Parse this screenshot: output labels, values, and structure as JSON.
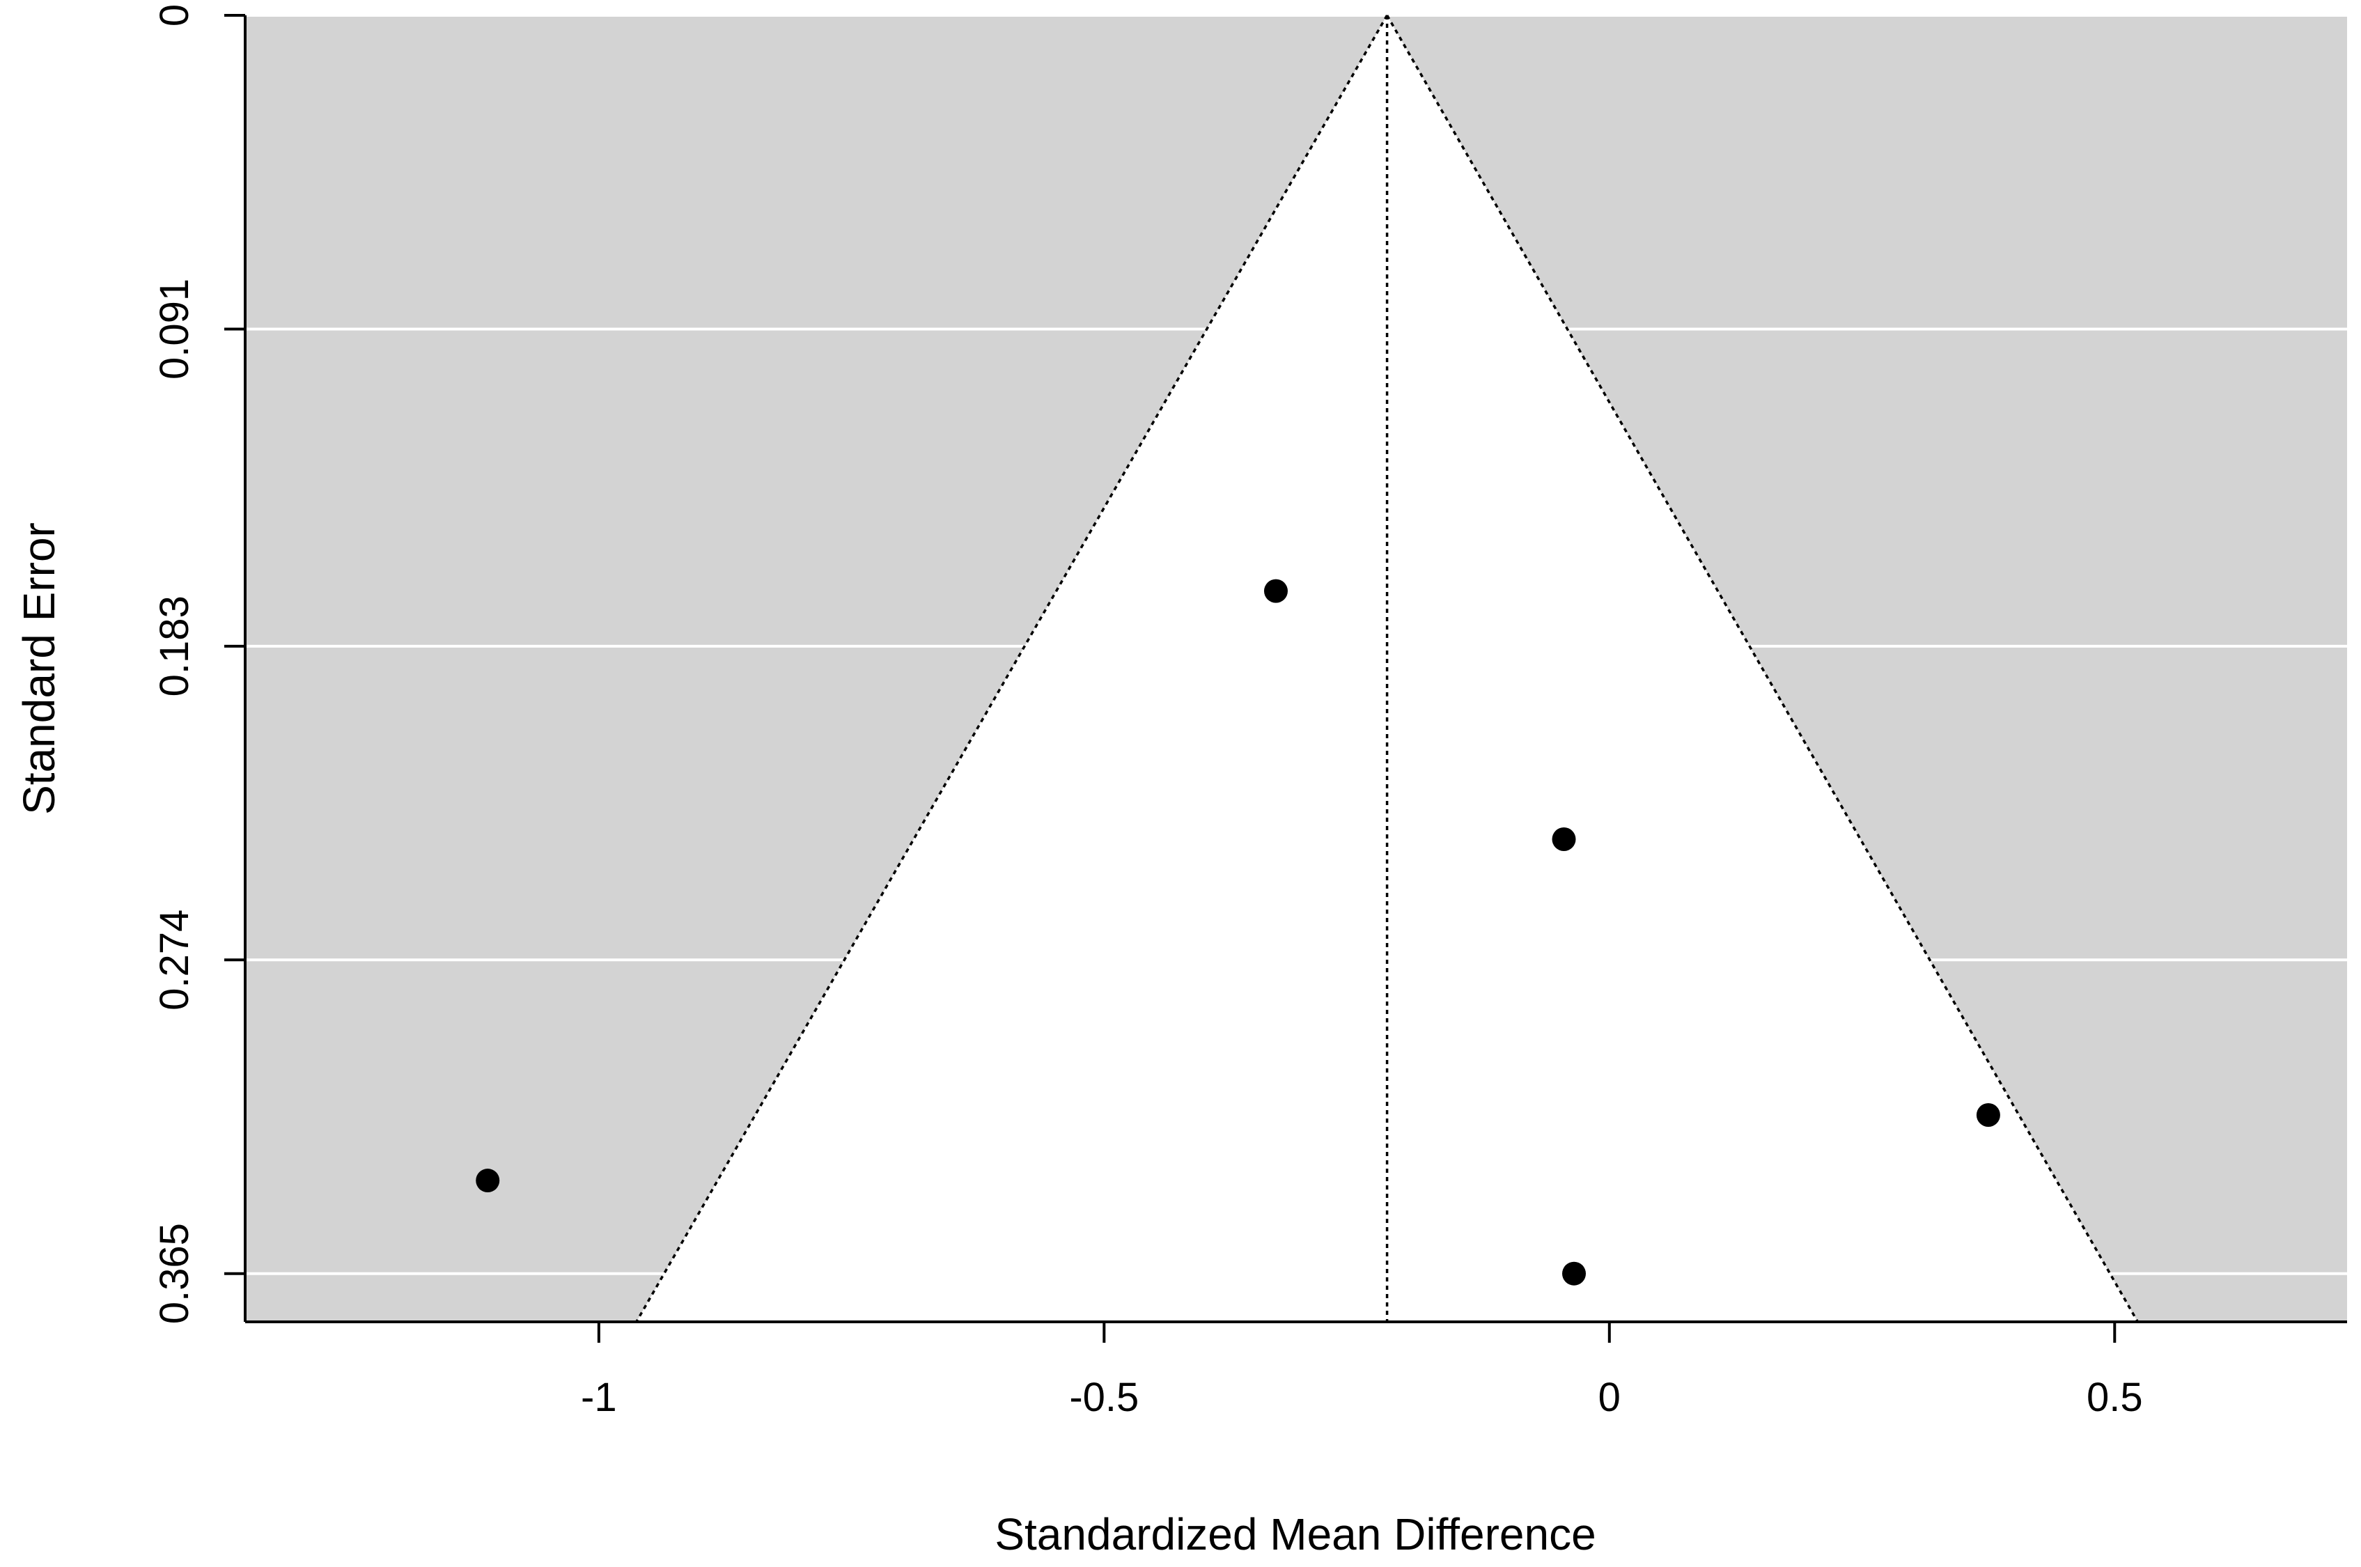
{
  "chart_data": {
    "type": "scatter",
    "title": "",
    "xlabel": "Standardized Mean Difference",
    "ylabel": "Standard Error",
    "xlim": [
      -1.35,
      0.73
    ],
    "ylim": [
      0,
      0.379
    ],
    "y_reversed": true,
    "x_ticks": [
      -1,
      -0.5,
      0,
      0.5
    ],
    "x_tick_labels": [
      "-1",
      "-0.5",
      "0",
      "0.5"
    ],
    "y_ticks": [
      0,
      0.091,
      0.183,
      0.274,
      0.365
    ],
    "y_tick_labels": [
      "0",
      "0.091",
      "0.183",
      "0.274",
      "0.365"
    ],
    "grid": "horizontal",
    "pooled_estimate": -0.22,
    "funnel_z": 1.96,
    "points": [
      {
        "x": -1.11,
        "y": 0.338
      },
      {
        "x": -0.33,
        "y": 0.167
      },
      {
        "x": -0.045,
        "y": 0.239
      },
      {
        "x": 0.375,
        "y": 0.319
      },
      {
        "x": -0.035,
        "y": 0.365
      }
    ],
    "colors": {
      "outer": "#d3d3d3",
      "funnel": "#ffffff",
      "grid": "#ffffff",
      "points": "#000000"
    }
  }
}
